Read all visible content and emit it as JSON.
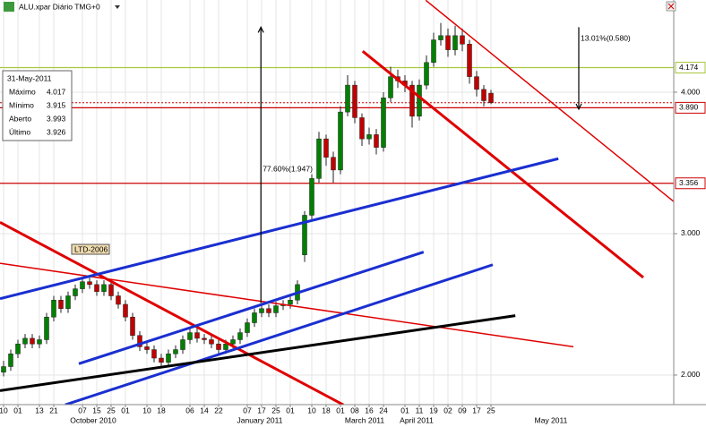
{
  "chart_data": {
    "type": "candlestick",
    "title": "ALU.xpar Diário TMG+0",
    "ylim": [
      1.791,
      4.652
    ],
    "yticks": [
      {
        "value": 2,
        "label": "2.000"
      },
      {
        "value": 3,
        "label": "3.000"
      },
      {
        "value": 4,
        "label": "4.000"
      }
    ],
    "grid": true,
    "up_color": "#008000",
    "down_color": "#c00000",
    "categories": [
      "10",
      null,
      "01",
      null,
      null,
      "13",
      null,
      "21",
      null,
      null,
      null,
      "07",
      null,
      "15",
      null,
      "25",
      null,
      "01",
      null,
      null,
      "10",
      null,
      "18",
      null,
      null,
      null,
      "06",
      null,
      "14",
      null,
      "22",
      null,
      null,
      null,
      "07",
      null,
      "17",
      null,
      "25",
      null,
      "01",
      null,
      null,
      "10",
      null,
      "18",
      null,
      "01",
      null,
      "08",
      null,
      "16",
      null,
      "24",
      null,
      null,
      "01",
      null,
      "11",
      null,
      "19",
      null,
      "02",
      null,
      "09",
      null,
      "17",
      null,
      "25",
      null,
      null,
      null,
      null,
      null,
      null,
      null,
      null,
      null,
      null,
      null,
      null,
      null,
      null,
      null,
      null,
      null,
      null,
      null,
      null,
      null,
      null,
      null,
      null,
      null
    ],
    "month_labels": [
      "October 2010",
      "January 2011",
      "March 2011",
      "April 2011",
      "May 2011"
    ],
    "open": [
      2.02,
      2.06,
      2.15,
      2.22,
      2.26,
      2.22,
      2.25,
      2.41,
      2.53,
      2.47,
      2.56,
      2.61,
      2.66,
      2.64,
      2.59,
      2.64,
      2.56,
      2.5,
      2.41,
      2.28,
      2.2,
      2.18,
      2.12,
      2.09,
      2.15,
      2.18,
      2.25,
      2.3,
      2.26,
      2.25,
      2.22,
      2.18,
      2.22,
      2.25,
      2.3,
      2.37,
      2.44,
      2.47,
      2.44,
      2.49,
      2.5,
      2.53,
      2.85,
      3.13,
      3.39,
      3.67,
      3.54,
      3.45,
      3.86,
      4.05,
      3.82,
      3.67,
      3.7,
      3.61,
      3.96,
      4.11,
      4.08,
      4.05,
      3.83,
      4.05,
      4.21,
      4.37,
      4.4,
      4.3,
      4.4,
      4.34,
      4.11,
      4.02,
      3.993,
      null,
      null,
      null,
      null,
      null,
      null,
      null,
      null,
      null,
      null,
      null,
      null,
      null,
      null,
      null,
      null,
      null,
      null,
      null,
      null,
      null,
      null,
      null,
      null,
      null
    ],
    "high": [
      2.1,
      2.18,
      2.25,
      2.29,
      2.29,
      2.28,
      2.44,
      2.56,
      2.56,
      2.59,
      2.64,
      2.69,
      2.69,
      2.67,
      2.67,
      2.67,
      2.59,
      2.53,
      2.44,
      2.31,
      2.23,
      2.21,
      2.15,
      2.18,
      2.21,
      2.28,
      2.33,
      2.33,
      2.29,
      2.28,
      2.25,
      2.25,
      2.28,
      2.33,
      2.4,
      2.47,
      2.5,
      2.5,
      2.52,
      2.53,
      2.56,
      2.67,
      3.16,
      3.42,
      3.72,
      3.7,
      3.58,
      3.9,
      4.12,
      4.08,
      3.85,
      3.75,
      3.74,
      4.0,
      4.18,
      4.16,
      4.12,
      4.08,
      4.09,
      4.26,
      4.42,
      4.49,
      4.45,
      4.47,
      4.45,
      4.37,
      4.15,
      4.05,
      4.017,
      null,
      null,
      null,
      null,
      null,
      null,
      null,
      null,
      null,
      null,
      null,
      null,
      null,
      null,
      null,
      null,
      null,
      null,
      null,
      null,
      null,
      null,
      null,
      null,
      null
    ],
    "low": [
      1.99,
      2.03,
      2.12,
      2.19,
      2.19,
      2.19,
      2.22,
      2.38,
      2.44,
      2.44,
      2.53,
      2.58,
      2.61,
      2.56,
      2.56,
      2.53,
      2.47,
      2.38,
      2.25,
      2.17,
      2.15,
      2.09,
      2.05,
      2.06,
      2.12,
      2.15,
      2.22,
      2.23,
      2.22,
      2.19,
      2.15,
      2.15,
      2.19,
      2.22,
      2.27,
      2.34,
      2.41,
      2.41,
      2.41,
      2.46,
      2.47,
      2.5,
      2.8,
      3.1,
      3.36,
      3.48,
      3.36,
      3.42,
      3.83,
      3.78,
      3.62,
      3.63,
      3.56,
      3.58,
      3.93,
      4.03,
      4.0,
      3.75,
      3.8,
      4.02,
      4.18,
      4.33,
      4.25,
      4.26,
      4.29,
      4.06,
      3.97,
      3.9,
      3.915,
      null,
      null,
      null,
      null,
      null,
      null,
      null,
      null,
      null,
      null,
      null,
      null,
      null,
      null,
      null,
      null,
      null,
      null,
      null,
      null,
      null,
      null,
      null,
      null,
      null
    ],
    "close": [
      2.06,
      2.15,
      2.22,
      2.26,
      2.22,
      2.25,
      2.41,
      2.53,
      2.47,
      2.56,
      2.61,
      2.66,
      2.64,
      2.59,
      2.64,
      2.56,
      2.5,
      2.41,
      2.28,
      2.2,
      2.18,
      2.12,
      2.09,
      2.15,
      2.18,
      2.25,
      2.3,
      2.26,
      2.25,
      2.22,
      2.18,
      2.22,
      2.25,
      2.3,
      2.37,
      2.44,
      2.47,
      2.44,
      2.49,
      2.5,
      2.53,
      2.64,
      3.13,
      3.39,
      3.67,
      3.54,
      3.45,
      3.86,
      4.05,
      3.82,
      3.67,
      3.7,
      3.61,
      3.96,
      4.11,
      4.08,
      4.05,
      3.83,
      4.05,
      4.21,
      4.37,
      4.4,
      4.3,
      4.4,
      4.34,
      4.11,
      4.02,
      3.94,
      3.926,
      null,
      null,
      null,
      null,
      null,
      null,
      null,
      null,
      null,
      null,
      null,
      null,
      null,
      null,
      null,
      null,
      null,
      null,
      null,
      null,
      null,
      null,
      null,
      null,
      null
    ],
    "levels": [
      {
        "value": 4.174,
        "color": "#a8c83c"
      },
      {
        "value": 3.89,
        "label": "3.890",
        "color": "#cc0000"
      },
      {
        "value": 3.356,
        "color": "#cc0000"
      }
    ],
    "trendlines": [
      {
        "x": [
          -0.5,
          47.4
        ],
        "y": [
          3.08,
          1.79
        ],
        "color": "#e00000",
        "width": 3
      },
      {
        "x": [
          -0.5,
          79.5
        ],
        "y": [
          2.79,
          2.2
        ],
        "color": "#e00000",
        "width": 1.5
      },
      {
        "x": [
          50.1,
          89.25
        ],
        "y": [
          4.29,
          2.69
        ],
        "color": "#e00000",
        "width": 3
      },
      {
        "x": [
          58.9,
          93.9
        ],
        "y": [
          4.65,
          3.21
        ],
        "color": "#e00000",
        "width": 1.5
      },
      {
        "x": [
          -0.5,
          77.4
        ],
        "y": [
          2.54,
          3.53
        ],
        "color": "#1a2fd0",
        "width": 3
      },
      {
        "x": [
          10.5,
          58.6
        ],
        "y": [
          2.08,
          2.87
        ],
        "color": "#1a2fd0",
        "width": 3
      },
      {
        "x": [
          8.6,
          68.25
        ],
        "y": [
          1.79,
          2.78
        ],
        "color": "#1a2fd0",
        "width": 3
      },
      {
        "x": [
          -0.5,
          71.4
        ],
        "y": [
          1.89,
          2.42
        ],
        "color": "#000000",
        "width": 3
      }
    ],
    "arrows": [
      {
        "label": "77.60%(1.947)",
        "x": 35.9,
        "from": 2.51,
        "to": 4.46
      },
      {
        "label": "13.01%(0.580)",
        "x": 80.25,
        "from": 4.46,
        "to": 3.88
      }
    ],
    "annotation": "LTD-2006",
    "info_date": "31-May-2011",
    "info_labels": [
      "Máximo",
      "Mínimo",
      "Aberto",
      "Último"
    ]
  }
}
